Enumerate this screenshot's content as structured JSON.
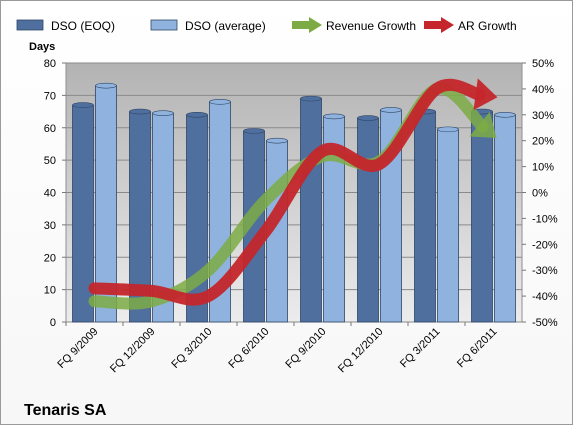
{
  "chart_data": {
    "type": "bar",
    "title": "Tenaris SA",
    "ylabel_left": "Days",
    "ylim_left": [
      0,
      80
    ],
    "ylim_right": [
      -50,
      50
    ],
    "left_ticks": [
      0,
      10,
      20,
      30,
      40,
      50,
      60,
      70,
      80
    ],
    "right_ticks": [
      "-50%",
      "-40%",
      "-30%",
      "-20%",
      "-10%",
      "0%",
      "10%",
      "20%",
      "30%",
      "40%",
      "50%"
    ],
    "categories": [
      "FQ 9/2009",
      "FQ 12/2009",
      "FQ 3/2010",
      "FQ 6/2010",
      "FQ 9/2010",
      "FQ 12/2010",
      "FQ 3/2011",
      "FQ 6/2011"
    ],
    "bar_series": [
      {
        "name": "DSO (EOQ)",
        "axis": "left",
        "color": "#4f6f9f",
        "values": [
          67,
          65,
          64,
          59,
          69,
          63,
          65,
          65
        ]
      },
      {
        "name": "DSO (average)",
        "axis": "left",
        "color": "#8fb3de",
        "values": [
          73,
          64.5,
          68,
          56,
          63.5,
          65.5,
          59.5,
          64
        ]
      }
    ],
    "line_series": [
      {
        "name": "Revenue Growth",
        "axis": "right",
        "color": "#7cab45",
        "values": [
          -42,
          -42,
          -30,
          -3,
          14,
          12,
          40,
          22
        ]
      },
      {
        "name": "AR Growth",
        "axis": "right",
        "color": "#c4262b",
        "values": [
          -37,
          -38,
          -40,
          -15,
          16,
          11,
          40,
          37
        ]
      }
    ],
    "legend_position": "top",
    "grid": true
  }
}
